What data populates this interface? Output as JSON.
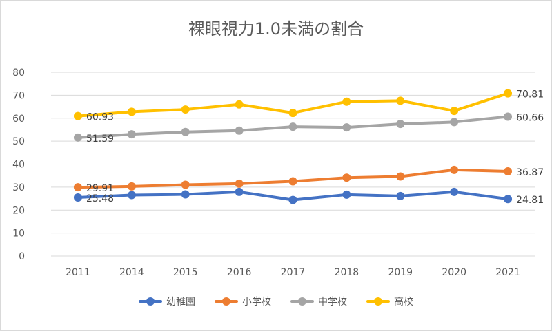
{
  "chart_data": {
    "type": "line",
    "title": "裸眼視力1.0未満の割合",
    "categories": [
      "2011",
      "2014",
      "2015",
      "2016",
      "2017",
      "2018",
      "2019",
      "2020",
      "2021"
    ],
    "ylim": [
      0,
      80
    ],
    "yticks": [
      "0",
      "10",
      "20",
      "30",
      "40",
      "50",
      "60",
      "70",
      "80"
    ],
    "grid": true,
    "legend_position": "bottom",
    "series": [
      {
        "name": "幼稚園",
        "color": "#4472C4",
        "values": [
          25.48,
          26.5,
          26.8,
          27.9,
          24.4,
          26.7,
          26.1,
          27.9,
          24.81
        ],
        "labels": [
          "25.48",
          "24.81"
        ]
      },
      {
        "name": "小学校",
        "color": "#ED7D31",
        "values": [
          29.91,
          30.3,
          31.0,
          31.5,
          32.5,
          34.1,
          34.6,
          37.5,
          36.87
        ],
        "labels": [
          "29.91",
          "36.87"
        ]
      },
      {
        "name": "中学校",
        "color": "#A5A5A5",
        "values": [
          51.59,
          53.0,
          54.0,
          54.6,
          56.3,
          56.0,
          57.5,
          58.3,
          60.66
        ],
        "labels": [
          "51.59",
          "60.66"
        ]
      },
      {
        "name": "高校",
        "color": "#FFC000",
        "values": [
          60.93,
          62.8,
          63.8,
          66.0,
          62.3,
          67.2,
          67.6,
          63.2,
          70.81
        ],
        "labels": [
          "60.93",
          "70.81"
        ]
      }
    ]
  }
}
